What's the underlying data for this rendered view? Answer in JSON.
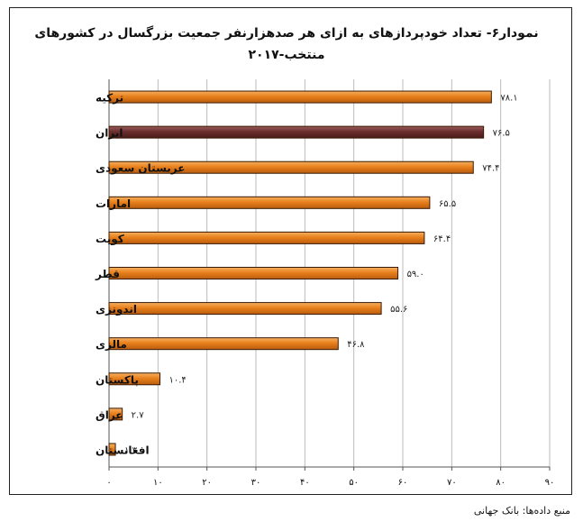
{
  "title_line1": "نمودار۶- تعداد خودپردازهای به ازای هر صدهزارنفر جمعیت بزرگسال در کشورهای",
  "title_line2": "منتخب-۲۰۱۷",
  "source": "منبع داده‌ها: بانک جهانی",
  "colors": {
    "bar": "#e8801c",
    "highlight": "#6b2e2e",
    "grid": "#bbbbbb"
  },
  "chart_data": {
    "type": "bar",
    "orientation": "horizontal",
    "categories": [
      "ترکیه",
      "ایران",
      "عربستان سعودی",
      "امارات",
      "کویت",
      "قطر",
      "اندونزی",
      "مالزی",
      "پاکستان",
      "عراق",
      "افغانستان"
    ],
    "values": [
      78.1,
      76.5,
      74.4,
      65.5,
      64.4,
      59.0,
      55.6,
      46.8,
      10.4,
      2.7,
      1.3
    ],
    "value_labels": [
      "۷۸.۱",
      "۷۶.۵",
      "۷۴.۴",
      "۶۵.۵",
      "۶۴.۴",
      "۵۹.۰",
      "۵۵.۶",
      "۴۶.۸",
      "۱۰.۴",
      "۲.۷",
      "۱.۳"
    ],
    "highlight_index": 1,
    "xlim": [
      0,
      90
    ],
    "ticks": [
      0,
      10,
      20,
      30,
      40,
      50,
      60,
      70,
      80,
      90
    ],
    "tick_labels": [
      "۰",
      "۱۰",
      "۲۰",
      "۳۰",
      "۴۰",
      "۵۰",
      "۶۰",
      "۷۰",
      "۸۰",
      "۹۰"
    ],
    "grid": true
  }
}
